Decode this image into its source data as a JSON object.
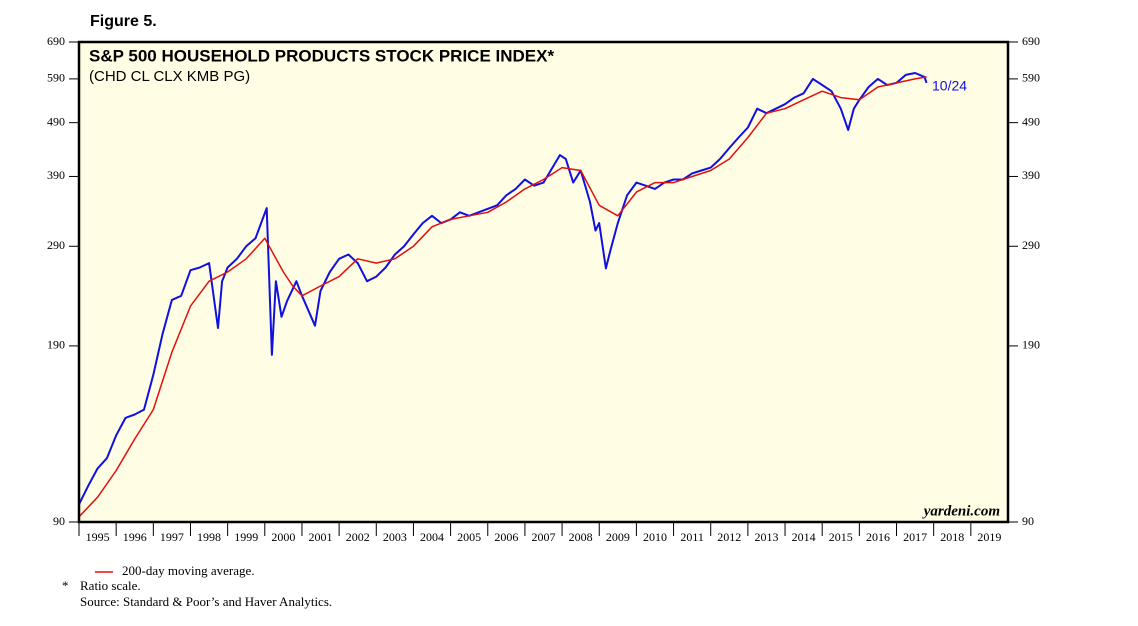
{
  "chart_data": {
    "type": "line",
    "figure_label": "Figure 5.",
    "title": "S&P 500 HOUSEHOLD PRODUCTS STOCK PRICE INDEX*",
    "subtitle": "(CHD CL CLX KMB PG)",
    "last_date_label": "10/24",
    "watermark": "yardeni.com",
    "footnote": "Ratio scale.",
    "footnote_marker": "*",
    "source": "Source: Standard & Poor’s and Haver Analytics.",
    "log_y": true,
    "background": "#fffde3",
    "xlim": [
      1995,
      2020
    ],
    "xticks": [
      {
        "value": 1995,
        "label": "1995"
      },
      {
        "value": 1996,
        "label": "1996"
      },
      {
        "value": 1997,
        "label": "1997"
      },
      {
        "value": 1998,
        "label": "1998"
      },
      {
        "value": 1999,
        "label": "1999"
      },
      {
        "value": 2000,
        "label": "2000"
      },
      {
        "value": 2001,
        "label": "2001"
      },
      {
        "value": 2002,
        "label": "2002"
      },
      {
        "value": 2003,
        "label": "2003"
      },
      {
        "value": 2004,
        "label": "2004"
      },
      {
        "value": 2005,
        "label": "2005"
      },
      {
        "value": 2006,
        "label": "2006"
      },
      {
        "value": 2007,
        "label": "2007"
      },
      {
        "value": 2008,
        "label": "2008"
      },
      {
        "value": 2009,
        "label": "2009"
      },
      {
        "value": 2010,
        "label": "2010"
      },
      {
        "value": 2011,
        "label": "2011"
      },
      {
        "value": 2012,
        "label": "2012"
      },
      {
        "value": 2013,
        "label": "2013"
      },
      {
        "value": 2014,
        "label": "2014"
      },
      {
        "value": 2015,
        "label": "2015"
      },
      {
        "value": 2016,
        "label": "2016"
      },
      {
        "value": 2017,
        "label": "2017"
      },
      {
        "value": 2018,
        "label": "2018"
      },
      {
        "value": 2019,
        "label": "2019"
      }
    ],
    "ylim": [
      90,
      690
    ],
    "yticks": [
      90,
      190,
      290,
      390,
      490,
      590,
      690
    ],
    "series": [
      {
        "name": "S&P 500 Household Products",
        "color": "#1010e0",
        "x": [
          1995.0,
          1995.25,
          1995.5,
          1995.75,
          1996.0,
          1996.25,
          1996.5,
          1996.75,
          1997.0,
          1997.25,
          1997.5,
          1997.75,
          1998.0,
          1998.25,
          1998.5,
          1998.74,
          1998.85,
          1999.0,
          1999.25,
          1999.5,
          1999.75,
          1999.9,
          2000.05,
          2000.19,
          2000.3,
          2000.45,
          2000.6,
          2000.85,
          2001.0,
          2001.35,
          2001.5,
          2001.75,
          2002.0,
          2002.25,
          2002.5,
          2002.75,
          2003.0,
          2003.25,
          2003.5,
          2003.75,
          2004.0,
          2004.25,
          2004.5,
          2004.75,
          2005.0,
          2005.25,
          2005.5,
          2005.75,
          2006.0,
          2006.25,
          2006.5,
          2006.75,
          2007.0,
          2007.25,
          2007.5,
          2007.94,
          2008.1,
          2008.3,
          2008.5,
          2008.75,
          2008.9,
          2009.0,
          2009.18,
          2009.3,
          2009.5,
          2009.75,
          2010.0,
          2010.25,
          2010.5,
          2010.75,
          2011.0,
          2011.25,
          2011.5,
          2011.75,
          2012.0,
          2012.25,
          2012.5,
          2012.75,
          2013.0,
          2013.25,
          2013.5,
          2013.75,
          2014.0,
          2014.25,
          2014.5,
          2014.75,
          2015.0,
          2015.25,
          2015.5,
          2015.7,
          2015.85,
          2016.0,
          2016.25,
          2016.5,
          2016.75,
          2017.0,
          2017.25,
          2017.5,
          2017.75,
          2017.81
        ],
        "values": [
          97,
          105,
          113,
          118,
          130,
          140,
          142,
          145,
          168,
          200,
          231,
          235,
          262,
          265,
          270,
          205,
          250,
          265,
          275,
          290,
          300,
          320,
          341,
          183,
          250,
          215,
          230,
          250,
          235,
          207,
          240,
          260,
          275,
          280,
          270,
          250,
          255,
          265,
          280,
          290,
          305,
          320,
          330,
          320,
          325,
          335,
          330,
          335,
          340,
          345,
          360,
          370,
          385,
          375,
          380,
          427,
          420,
          380,
          400,
          350,
          310,
          320,
          264,
          285,
          320,
          360,
          380,
          375,
          370,
          380,
          385,
          385,
          395,
          400,
          405,
          420,
          440,
          460,
          480,
          520,
          510,
          520,
          530,
          545,
          555,
          590,
          575,
          560,
          520,
          475,
          520,
          540,
          570,
          590,
          575,
          580,
          600,
          605,
          595,
          580
        ]
      },
      {
        "name": "200-day moving average.",
        "color": "#e01010",
        "x": [
          1995.0,
          1995.5,
          1996.0,
          1996.5,
          1997.0,
          1997.5,
          1998.0,
          1998.5,
          1999.0,
          1999.5,
          2000.0,
          2000.5,
          2000.75,
          2001.0,
          2001.5,
          2002.0,
          2002.5,
          2003.0,
          2003.5,
          2004.0,
          2004.5,
          2005.0,
          2005.5,
          2006.0,
          2006.5,
          2007.0,
          2007.5,
          2008.0,
          2008.5,
          2009.0,
          2009.5,
          2010.0,
          2010.5,
          2011.0,
          2011.5,
          2012.0,
          2012.5,
          2013.0,
          2013.5,
          2014.0,
          2014.5,
          2015.0,
          2015.5,
          2016.0,
          2016.5,
          2017.0,
          2017.5,
          2017.81
        ],
        "values": [
          92,
          100,
          112,
          128,
          145,
          185,
          225,
          250,
          260,
          275,
          300,
          260,
          245,
          235,
          245,
          255,
          275,
          270,
          275,
          290,
          315,
          325,
          330,
          335,
          350,
          370,
          385,
          405,
          400,
          345,
          330,
          365,
          380,
          380,
          390,
          400,
          420,
          460,
          510,
          520,
          540,
          560,
          545,
          540,
          570,
          580,
          590,
          595
        ]
      }
    ]
  }
}
